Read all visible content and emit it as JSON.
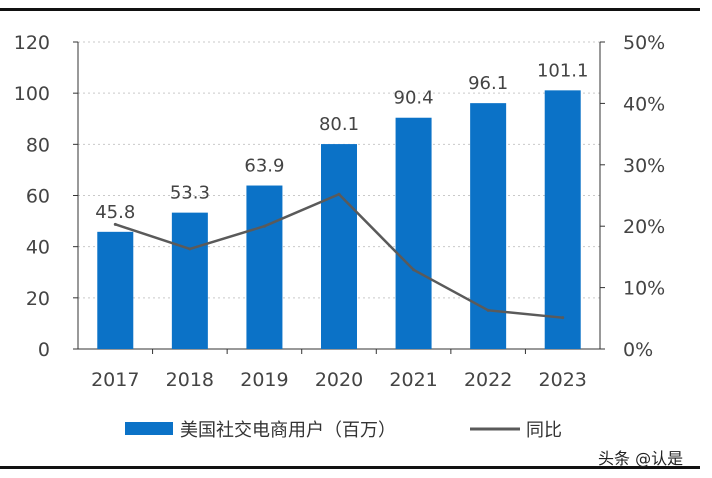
{
  "chart_data": {
    "type": "bar",
    "categories": [
      "2017",
      "2018",
      "2019",
      "2020",
      "2021",
      "2022",
      "2023"
    ],
    "series": [
      {
        "name": "美国社交电商用户（百万）",
        "type": "bar",
        "axis": "left",
        "values": [
          45.8,
          53.3,
          63.9,
          80.1,
          90.4,
          96.1,
          101.1
        ]
      },
      {
        "name": "同比",
        "type": "line",
        "axis": "right",
        "values": [
          20.3,
          16.3,
          20.0,
          25.2,
          12.9,
          6.3,
          5.1
        ]
      }
    ],
    "data_labels": [
      "45.8",
      "53.3",
      "63.9",
      "80.1",
      "90.4",
      "96.1",
      "101.1"
    ],
    "y_left": {
      "ticks": [
        "0",
        "20",
        "40",
        "60",
        "80",
        "100",
        "120"
      ],
      "range": [
        0,
        120
      ]
    },
    "y_right": {
      "ticks": [
        "0%",
        "10%",
        "20%",
        "30%",
        "40%",
        "50%"
      ],
      "range": [
        0,
        50
      ]
    },
    "grid": "horizontal dotted",
    "legend_position": "bottom",
    "colors": {
      "bar": "#0b72c7",
      "line": "#5a5a5a"
    }
  },
  "watermark": "头条 @认是"
}
